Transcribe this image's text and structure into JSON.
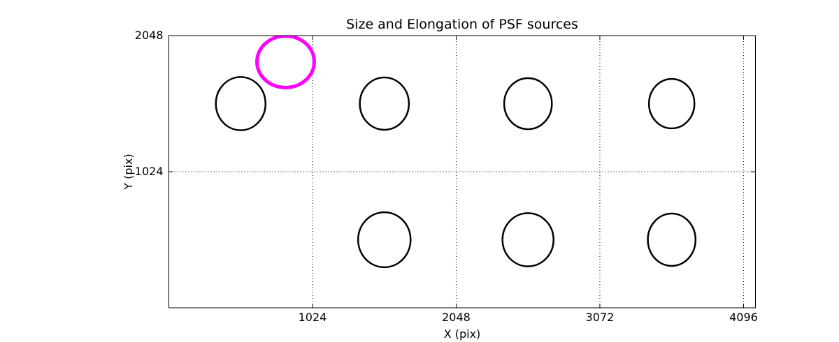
{
  "figure": {
    "background": "#ffffff"
  },
  "chart_data": {
    "type": "scatter",
    "title": "Size and Elongation of PSF sources",
    "xlabel": "X (pix)",
    "ylabel": "Y (pix)",
    "xlim": [
      0,
      4181
    ],
    "ylim": [
      0,
      2048
    ],
    "xticks": [
      1024,
      2048,
      3072,
      4096
    ],
    "yticks": [
      1024,
      2048
    ],
    "grid": {
      "style": "dotted",
      "x_positions": [
        1024,
        2048,
        3072,
        4096
      ],
      "y_positions": [
        1024,
        2048
      ]
    },
    "legend": null,
    "colors": {
      "source_outline": "#000000",
      "highlight_outline": "#ff00ff",
      "axes": "#000000",
      "background": "#ffffff"
    },
    "ellipses": [
      {
        "x": 512,
        "y": 1536,
        "a": 177,
        "b": 200,
        "color": "#000000",
        "lw": 2.5
      },
      {
        "x": 1536,
        "y": 1536,
        "a": 175,
        "b": 197,
        "color": "#000000",
        "lw": 2.5
      },
      {
        "x": 2560,
        "y": 1536,
        "a": 170,
        "b": 192,
        "color": "#000000",
        "lw": 2.5
      },
      {
        "x": 3584,
        "y": 1536,
        "a": 162,
        "b": 186,
        "color": "#000000",
        "lw": 2.5
      },
      {
        "x": 1536,
        "y": 512,
        "a": 187,
        "b": 207,
        "color": "#000000",
        "lw": 2.5
      },
      {
        "x": 2560,
        "y": 512,
        "a": 182,
        "b": 200,
        "color": "#000000",
        "lw": 2.5
      },
      {
        "x": 3584,
        "y": 512,
        "a": 170,
        "b": 197,
        "color": "#000000",
        "lw": 2.5
      },
      {
        "x": 832,
        "y": 1851,
        "a": 204,
        "b": 194,
        "color": "#ff00ff",
        "lw": 5
      }
    ]
  }
}
